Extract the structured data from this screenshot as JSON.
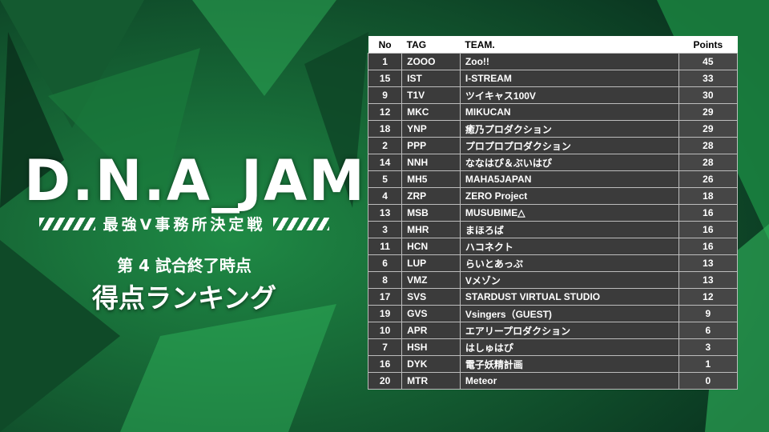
{
  "logo": {
    "title": "D.N.A_JAM",
    "subtitle": "最強V事務所決定戦"
  },
  "heading": {
    "line1": "第 4 試合終了時点",
    "line2": "得点ランキング"
  },
  "table": {
    "columns": [
      "No",
      "TAG",
      "TEAM.",
      "Points"
    ],
    "rows": [
      [
        1,
        "ZOOO",
        "Zoo!!",
        45
      ],
      [
        15,
        "IST",
        "I-STREAM",
        33
      ],
      [
        9,
        "T1V",
        "ツイキャス100V",
        30
      ],
      [
        12,
        "MKC",
        "MIKUCAN",
        29
      ],
      [
        18,
        "YNP",
        "癒乃プロダクション",
        29
      ],
      [
        2,
        "PPP",
        "プロプロプロダクション",
        28
      ],
      [
        14,
        "NNH",
        "ななはぴ＆ぶいはぴ",
        28
      ],
      [
        5,
        "MH5",
        "MAHA5JAPAN",
        26
      ],
      [
        4,
        "ZRP",
        "ZERO Project",
        18
      ],
      [
        13,
        "MSB",
        "MUSUBIME△",
        16
      ],
      [
        3,
        "MHR",
        "まほろば",
        16
      ],
      [
        11,
        "HCN",
        "ハコネクト",
        16
      ],
      [
        6,
        "LUP",
        "らいとあっぷ",
        13
      ],
      [
        8,
        "VMZ",
        "Vメゾン",
        13
      ],
      [
        17,
        "SVS",
        "STARDUST VIRTUAL STUDIO",
        12
      ],
      [
        19,
        "GVS",
        "Vsingers（GUEST)",
        9
      ],
      [
        10,
        "APR",
        "エアリープロダクション",
        6
      ],
      [
        7,
        "HSH",
        "はしゅはぴ",
        3
      ],
      [
        16,
        "DYK",
        "電子妖精計画",
        1
      ],
      [
        20,
        "MTR",
        "Meteor",
        0
      ]
    ]
  }
}
